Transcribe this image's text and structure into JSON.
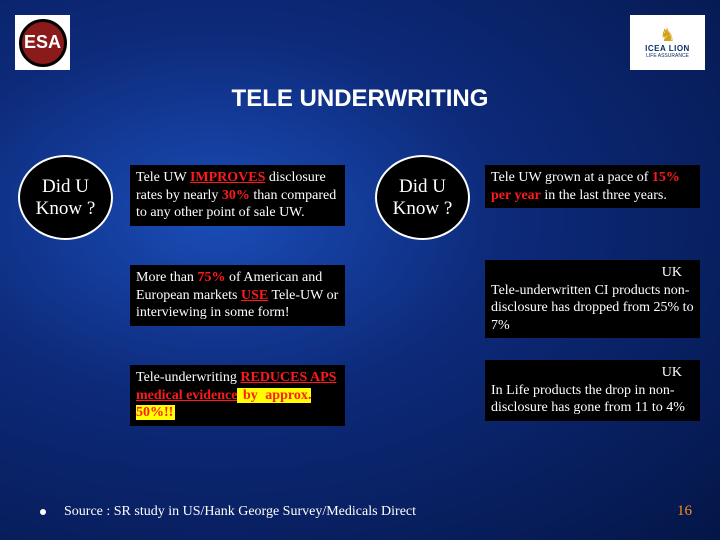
{
  "title": "TELE UNDERWRITING",
  "logos": {
    "left_text": "ESA",
    "right_brand": "ICEA LION",
    "right_sub": "LIFE ASSURANCE",
    "right_glyph": "♞"
  },
  "ovals": {
    "left": "Did U Know ?",
    "right": "Did U Know ?"
  },
  "left_boxes": {
    "b1_pre": "Tele UW ",
    "b1_hl": "IMPROVES",
    "b1_mid": " disclosure rates by nearly ",
    "b1_pct": "30%",
    "b1_post": " than compared to any other point of sale UW.",
    "b2_pre": "More than ",
    "b2_pct": "75%",
    "b2_mid": " of American and European markets ",
    "b2_hl": "USE",
    "b2_post": " Tele-UW or interviewing in some form!",
    "b3_pre": "Tele-underwriting ",
    "b3_hl": "REDUCES APS medical evidence",
    "b3_by": " by ",
    "b3_pct": "approx. 50%!!"
  },
  "right_boxes": {
    "b1_pre": "Tele UW grown at a pace of ",
    "b1_pct": "15% per year",
    "b1_post": " in the last three years.",
    "b2_uk": "UK",
    "b2_text": "Tele-underwritten CI products non-disclosure has dropped from 25% to 7%",
    "b3_uk": "UK",
    "b3_text": "In Life products the drop in non-disclosure has gone from 11 to 4%"
  },
  "source": "Source : SR study in US/Hank George Survey/Medicals Direct",
  "page_number": "16",
  "colors": {
    "highlight_red": "#ff1a1a",
    "highlight_yellow": "#ffff00",
    "page_num": "#ff8c1a"
  }
}
